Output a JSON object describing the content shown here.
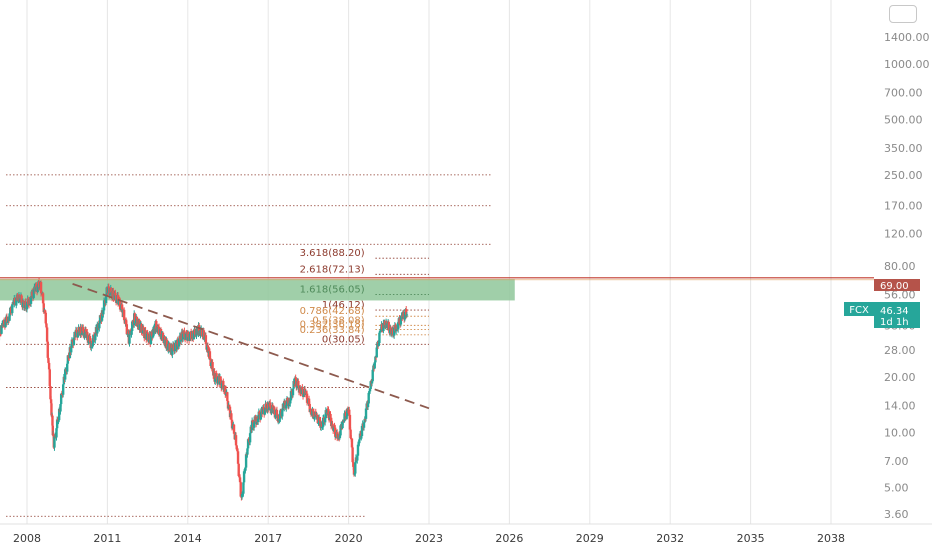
{
  "chart_data": {
    "type": "candlestick",
    "title": "",
    "symbol": "FCX",
    "last_price": "46.34",
    "price_badge_interval": "1d 1h",
    "resistance_badge": "69.00",
    "x_axis_labels": [
      "2008",
      "2011",
      "2014",
      "2017",
      "2020",
      "2023",
      "2026",
      "2029",
      "2032",
      "2035",
      "2038"
    ],
    "y_axis_labels": [
      "3.60",
      "5.00",
      "7.00",
      "10.00",
      "14.00",
      "20.00",
      "28.00",
      "38.00",
      "56.00",
      "80.00",
      "120.00",
      "170.00",
      "250.00",
      "350.00",
      "500.00",
      "700.00",
      "1000.00",
      "1400.00"
    ],
    "y_scale": "log",
    "fib_levels": [
      {
        "label": "3.618(88.20)",
        "value": 88.2,
        "color": "#8d3b2e"
      },
      {
        "label": "2.618(72.13)",
        "value": 72.13,
        "color": "#8d3b2e"
      },
      {
        "label": "1.618(56.05)",
        "value": 56.05,
        "color": "#4f8a5a"
      },
      {
        "label": "1(46.12)",
        "value": 46.12,
        "color": "#8d3b2e"
      },
      {
        "label": "0.786(42.68)",
        "value": 42.68,
        "color": "#d08a4a"
      },
      {
        "label": "0.5(38.08)",
        "value": 38.08,
        "color": "#d08a4a"
      },
      {
        "label": "0.382(36.18)",
        "value": 36.18,
        "color": "#d08a4a"
      },
      {
        "label": "0.236(33.84)",
        "value": 33.84,
        "color": "#d08a4a"
      },
      {
        "label": "0(30.05)",
        "value": 30.05,
        "color": "#8d3b2e"
      }
    ],
    "series": [
      {
        "values": [
          [
            2006.9,
            33
          ],
          [
            2007.1,
            38
          ],
          [
            2007.3,
            42
          ],
          [
            2007.5,
            50
          ],
          [
            2007.7,
            55
          ],
          [
            2007.9,
            48
          ],
          [
            2008.1,
            52
          ],
          [
            2008.3,
            60
          ],
          [
            2008.5,
            64
          ],
          [
            2008.7,
            40
          ],
          [
            2008.9,
            14
          ],
          [
            2009.0,
            8.5
          ],
          [
            2009.2,
            13
          ],
          [
            2009.4,
            20
          ],
          [
            2009.6,
            28
          ],
          [
            2009.8,
            34
          ],
          [
            2010.0,
            36
          ],
          [
            2010.2,
            34
          ],
          [
            2010.4,
            30
          ],
          [
            2010.6,
            36
          ],
          [
            2010.8,
            44
          ],
          [
            2011.0,
            60
          ],
          [
            2011.2,
            56
          ],
          [
            2011.4,
            52
          ],
          [
            2011.6,
            44
          ],
          [
            2011.8,
            32
          ],
          [
            2012.0,
            42
          ],
          [
            2012.2,
            38
          ],
          [
            2012.4,
            34
          ],
          [
            2012.6,
            32
          ],
          [
            2012.8,
            38
          ],
          [
            2013.0,
            34
          ],
          [
            2013.2,
            30
          ],
          [
            2013.4,
            28
          ],
          [
            2013.6,
            30
          ],
          [
            2013.8,
            34
          ],
          [
            2014.0,
            33
          ],
          [
            2014.2,
            34
          ],
          [
            2014.4,
            36
          ],
          [
            2014.6,
            34
          ],
          [
            2014.8,
            26
          ],
          [
            2015.0,
            20
          ],
          [
            2015.2,
            19
          ],
          [
            2015.4,
            17
          ],
          [
            2015.6,
            12
          ],
          [
            2015.8,
            9
          ],
          [
            2016.0,
            4.2
          ],
          [
            2016.2,
            8
          ],
          [
            2016.4,
            11
          ],
          [
            2016.6,
            12
          ],
          [
            2016.8,
            13
          ],
          [
            2017.0,
            14
          ],
          [
            2017.2,
            13
          ],
          [
            2017.4,
            12
          ],
          [
            2017.6,
            14
          ],
          [
            2017.8,
            15
          ],
          [
            2018.0,
            19
          ],
          [
            2018.2,
            17
          ],
          [
            2018.4,
            16
          ],
          [
            2018.6,
            13
          ],
          [
            2018.8,
            12
          ],
          [
            2019.0,
            11
          ],
          [
            2019.2,
            13
          ],
          [
            2019.4,
            11
          ],
          [
            2019.6,
            9
          ],
          [
            2019.8,
            12
          ],
          [
            2020.0,
            13
          ],
          [
            2020.2,
            6
          ],
          [
            2020.4,
            9
          ],
          [
            2020.6,
            12
          ],
          [
            2020.8,
            17
          ],
          [
            2021.0,
            26
          ],
          [
            2021.2,
            36
          ],
          [
            2021.4,
            40
          ],
          [
            2021.6,
            34
          ],
          [
            2021.8,
            38
          ],
          [
            2022.0,
            42
          ],
          [
            2022.2,
            46
          ]
        ]
      }
    ],
    "trendline": {
      "from": [
        2009.7,
        64
      ],
      "to": [
        2023.0,
        13.5
      ]
    },
    "resistance_level": 69.0,
    "zone": {
      "from_x": 2006.9,
      "to_x": 2026.2,
      "low": 52,
      "high": 68
    },
    "grid": true
  }
}
